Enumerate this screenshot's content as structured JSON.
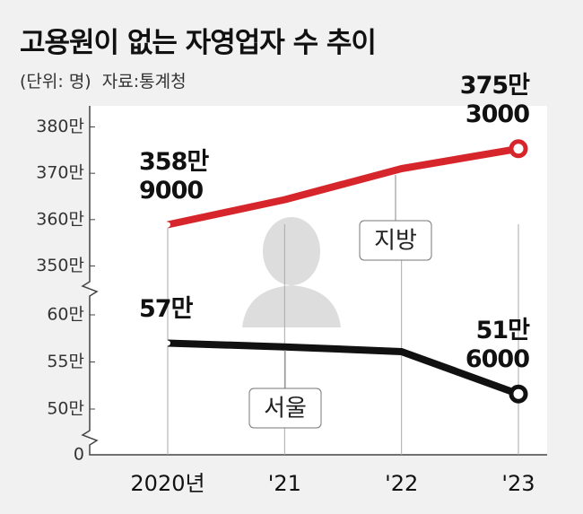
{
  "chart_data": [
    {
      "type": "line",
      "title": "고용원이 없는 자영업자 수 추이",
      "subtitle": "(단위: 명)  자료:통계청",
      "ylim": [
        347,
        383
      ],
      "yticks": [
        {
          "value": 350,
          "label": "350만"
        },
        {
          "value": 360,
          "label": "360만"
        },
        {
          "value": 370,
          "label": "370만"
        },
        {
          "value": 380,
          "label": "380만"
        }
      ],
      "series": [
        {
          "name": "지방",
          "color": "#d7262b",
          "values": [
            358.9,
            364.3,
            371,
            375.3
          ],
          "value_labels": [
            "358만\n9000",
            null,
            null,
            "375만\n3000"
          ]
        }
      ]
    },
    {
      "type": "line",
      "categories": [
        "2020년",
        "'21",
        "'22",
        "'23"
      ],
      "ylim": [
        47,
        62
      ],
      "yticks": [
        0,
        {
          "value": 50,
          "label": "50만"
        },
        {
          "value": 55,
          "label": "55만"
        },
        {
          "value": 60,
          "label": "60만"
        }
      ],
      "series": [
        {
          "name": "서울",
          "color": "#111111",
          "values": [
            57,
            56.6,
            56.1,
            51.6
          ],
          "value_labels": [
            "57만",
            null,
            null,
            "51만\n6000"
          ]
        }
      ]
    }
  ]
}
